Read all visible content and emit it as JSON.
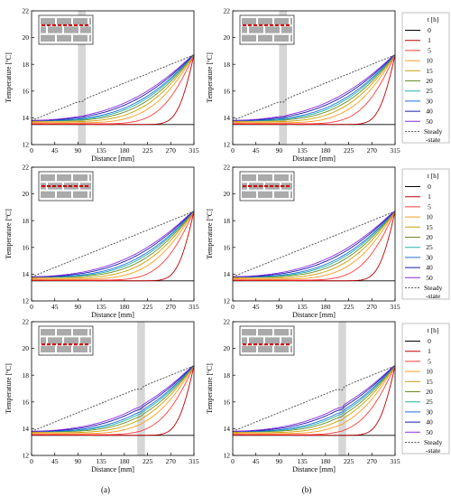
{
  "chart_data": [
    {
      "row": 0,
      "col": 0,
      "type": "line",
      "inset_variant": "top",
      "shade_x": [
        90,
        105
      ],
      "kink_x": 100,
      "amp": 1.0,
      "xlabel": "Distance [mm]",
      "ylabel": "Temperature [ºC]",
      "xlim": [
        0,
        315
      ],
      "ylim": [
        12,
        22
      ],
      "xticks": [
        0,
        45,
        90,
        135,
        180,
        225,
        270,
        315
      ],
      "yticks": [
        12,
        14,
        16,
        18,
        20,
        22
      ]
    },
    {
      "row": 0,
      "col": 1,
      "type": "line",
      "inset_variant": "top",
      "shade_x": [
        90,
        105
      ],
      "kink_x": 100,
      "amp": 1.4,
      "xlabel": "Distance [mm]",
      "ylabel": "Temperature [ºC]",
      "xlim": [
        0,
        315
      ],
      "ylim": [
        12,
        22
      ],
      "xticks": [
        0,
        45,
        90,
        135,
        180,
        225,
        270,
        315
      ],
      "yticks": [
        12,
        14,
        16,
        18,
        20,
        22
      ]
    },
    {
      "row": 1,
      "col": 0,
      "type": "line",
      "inset_variant": "mid",
      "shade_x": null,
      "kink_x": null,
      "amp": 0,
      "xlabel": "Distance [mm]",
      "ylabel": "Temperature [ºC]",
      "xlim": [
        0,
        315
      ],
      "ylim": [
        12,
        22
      ],
      "xticks": [
        0,
        45,
        90,
        135,
        180,
        225,
        270,
        315
      ],
      "yticks": [
        12,
        14,
        16,
        18,
        20,
        22
      ]
    },
    {
      "row": 1,
      "col": 1,
      "type": "line",
      "inset_variant": "mid",
      "shade_x": null,
      "kink_x": null,
      "amp": 0,
      "xlabel": "Distance [mm]",
      "ylabel": "Temperature [ºC]",
      "xlim": [
        0,
        315
      ],
      "ylim": [
        12,
        22
      ],
      "xticks": [
        0,
        45,
        90,
        135,
        180,
        225,
        270,
        315
      ],
      "yticks": [
        12,
        14,
        16,
        18,
        20,
        22
      ]
    },
    {
      "row": 2,
      "col": 0,
      "type": "line",
      "inset_variant": "bottom",
      "shade_x": [
        205,
        220
      ],
      "kink_x": 213,
      "amp": 1.2,
      "xlabel": "Distance [mm]",
      "ylabel": "Temperature [ºC]",
      "xlim": [
        0,
        315
      ],
      "ylim": [
        12,
        22
      ],
      "xticks": [
        0,
        45,
        90,
        135,
        180,
        225,
        270,
        315
      ],
      "yticks": [
        12,
        14,
        16,
        18,
        20,
        22
      ]
    },
    {
      "row": 2,
      "col": 1,
      "type": "line",
      "inset_variant": "bottom",
      "shade_x": [
        205,
        220
      ],
      "kink_x": 213,
      "amp": 1.8,
      "xlabel": "Distance [mm]",
      "ylabel": "Temperature [ºC]",
      "xlim": [
        0,
        315
      ],
      "ylim": [
        12,
        22
      ],
      "xticks": [
        0,
        45,
        90,
        135,
        180,
        225,
        270,
        315
      ],
      "yticks": [
        12,
        14,
        16,
        18,
        20,
        22
      ]
    }
  ],
  "series": [
    {
      "t": "0",
      "name": "0",
      "color": "#000000",
      "dashed": false
    },
    {
      "t": "1",
      "name": "1",
      "color": "#c00000",
      "dashed": false
    },
    {
      "t": "5",
      "name": "5",
      "color": "#ff3b3b",
      "dashed": false
    },
    {
      "t": "10",
      "name": "10",
      "color": "#ff9a1f",
      "dashed": false
    },
    {
      "t": "15",
      "name": "15",
      "color": "#c8a000",
      "dashed": false
    },
    {
      "t": "20",
      "name": "20",
      "color": "#6b8e23",
      "dashed": false
    },
    {
      "t": "25",
      "name": "25",
      "color": "#20b2aa",
      "dashed": false
    },
    {
      "t": "30",
      "name": "30",
      "color": "#1e6fd9",
      "dashed": false
    },
    {
      "t": "40",
      "name": "40",
      "color": "#1a1aa8",
      "dashed": false
    },
    {
      "t": "50",
      "name": "50",
      "color": "#8a2be2",
      "dashed": false
    },
    {
      "t": "steady",
      "name": "Steady\n-state",
      "color": "#555555",
      "dashed": true
    }
  ],
  "legend": {
    "title": "t [h]",
    "labels": [
      "0",
      "1",
      "5",
      "10",
      "15",
      "20",
      "25",
      "30",
      "40",
      "50",
      "Steady",
      "-state"
    ]
  },
  "profile": {
    "T_left_steady": 13.8,
    "T_right_steady": 18.7,
    "T_initial": 13.5,
    "tau_h": [
      0,
      1,
      5,
      10,
      15,
      20,
      25,
      30,
      40,
      50
    ]
  },
  "captions": {
    "a": "(a)",
    "b": "(b)"
  },
  "colors": {
    "inset_brick": "#aaaaaa",
    "inset_line": "#d40000",
    "shade": "#d6d6d6",
    "axis": "#000000"
  }
}
